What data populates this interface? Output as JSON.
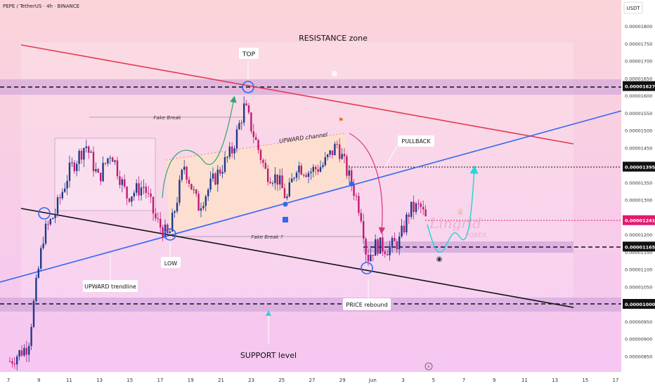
{
  "header": {
    "symbol_line": "PEPE / TetherUS · 4h · BINANCE",
    "currency": "USDT"
  },
  "colors": {
    "bg_top": "#fbd3db",
    "bg_bottom": "#f7c8f2",
    "bull": "#1e3a8a",
    "bear": "#c41a72",
    "resistance_line": "#e53950",
    "channel_line": "#3068f0",
    "trend_black": "#111111",
    "zone": "#c79bd6",
    "zone_dark": "#b77fca",
    "price_tag": "#e21a6f",
    "arrow_green": "#2fa86b",
    "arrow_red": "#d6337a",
    "arrow_cyan": "#2bd4dc"
  },
  "annotations": {
    "resistance_zone": "RESISTANCE zone",
    "top": "TOP",
    "fake_break": "Fake Break",
    "upward_channel": "UPWARD channel",
    "pullback": "PULLBACK",
    "fake_break_q": "Fake Break ?",
    "low": "LOW",
    "upward_trendline": "UPWARD trendline",
    "price_rebound": "PRICE rebound",
    "support_level": "SUPPORT level",
    "watermark_main": "Lingrid",
    "watermark_sub": "FOREX"
  },
  "chart_data": {
    "type": "candlestick",
    "symbol": "PEPE / TetherUS",
    "interval": "4h",
    "exchange": "BINANCE",
    "y_axis_ticks": [
      "0.00001800",
      "0.00001750",
      "0.00001700",
      "0.00001650",
      "0.00001600",
      "0.00001550",
      "0.00001500",
      "0.00001450",
      "0.00001350",
      "0.00001300",
      "0.00001250",
      "0.00001200",
      "0.00001150",
      "0.00001100",
      "0.00001050",
      "0.00000950",
      "0.00000900",
      "0.00000850"
    ],
    "x_axis_ticks": [
      "7",
      "9",
      "11",
      "13",
      "15",
      "17",
      "19",
      "21",
      "23",
      "25",
      "27",
      "29",
      "Jun",
      "3",
      "5",
      "7",
      "9",
      "11",
      "13",
      "15",
      "17"
    ],
    "price_labels": [
      {
        "value": "0.00001627",
        "style": "dark"
      },
      {
        "value": "0.00001395",
        "style": "dark"
      },
      {
        "value": "0.00001241",
        "style": "current"
      },
      {
        "value": "0.00001165",
        "style": "dark"
      },
      {
        "value": "0.00001000",
        "style": "dark"
      }
    ],
    "ylim": [
      8.2e-06,
      1.85e-05
    ],
    "key_levels": {
      "resistance": 1.627e-05,
      "target": 1.395e-05,
      "current": 1.241e-05,
      "support_minor": 1.165e-05,
      "support": 1e-05
    }
  }
}
